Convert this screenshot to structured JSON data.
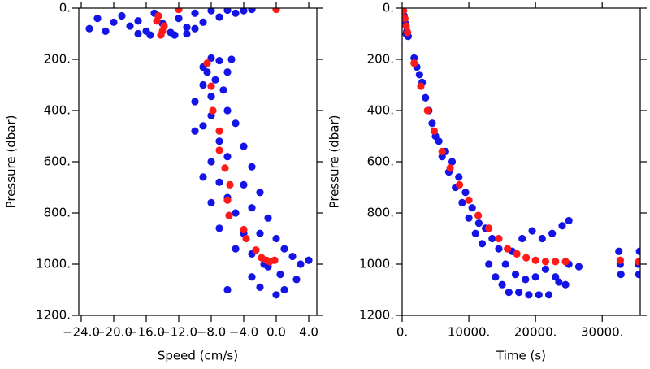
{
  "chart_data": [
    {
      "type": "scatter",
      "x_label": "Speed (cm/s)",
      "y_label": "Pressure (dbar)",
      "xlim": [
        -24.3,
        5
      ],
      "ylim": [
        0,
        1200
      ],
      "invert_y": true,
      "xticks": [
        {
          "value": -24,
          "label": "−24.0"
        },
        {
          "value": -20,
          "label": "−20.0"
        },
        {
          "value": -16,
          "label": "−16.0"
        },
        {
          "value": -12,
          "label": "−12.0"
        },
        {
          "value": -8,
          "label": "−8.0"
        },
        {
          "value": -4,
          "label": "−4.0"
        },
        {
          "value": 0,
          "label": "0.0"
        },
        {
          "value": 4,
          "label": "4.0"
        }
      ],
      "yticks": [
        {
          "value": 0,
          "label": "0."
        },
        {
          "value": 200,
          "label": "200."
        },
        {
          "value": 400,
          "label": "400."
        },
        {
          "value": 600,
          "label": "600."
        },
        {
          "value": 800,
          "label": "800."
        },
        {
          "value": 1000,
          "label": "1000."
        },
        {
          "value": 1200,
          "label": "1200."
        }
      ],
      "series": [
        {
          "color": "#1414e6",
          "x": [
            -23,
            -22,
            -20,
            -19,
            -18,
            -17,
            -16,
            -15,
            -14,
            -13,
            -12,
            -11,
            -10,
            -9,
            -8,
            -7,
            -6,
            -5,
            -4,
            -3,
            -15.5,
            -12.5,
            -17,
            -21,
            -11,
            -10,
            -8,
            -7,
            -9,
            -8.5,
            -6,
            -7.5,
            -9,
            -6.5,
            -5.5,
            -8,
            -10,
            -8,
            -6,
            -9,
            -5,
            -7,
            -10,
            -4,
            -8,
            -6,
            -3,
            -9,
            -7,
            -4,
            -2,
            -8,
            -6,
            -5,
            -3,
            -1,
            -7,
            -4,
            -2,
            0,
            -5,
            -3,
            1,
            2,
            -1,
            0.5,
            -3,
            3,
            4,
            -2,
            1,
            -6,
            0,
            -1.5,
            2.5
          ],
          "values": [
            80,
            40,
            55,
            30,
            70,
            50,
            90,
            20,
            60,
            95,
            40,
            75,
            20,
            55,
            10,
            35,
            8,
            20,
            10,
            5,
            105,
            105,
            100,
            90,
            100,
            80,
            195,
            205,
            230,
            250,
            250,
            280,
            300,
            320,
            200,
            345,
            365,
            420,
            400,
            460,
            450,
            520,
            480,
            540,
            600,
            580,
            620,
            660,
            680,
            690,
            720,
            760,
            740,
            800,
            780,
            820,
            860,
            880,
            880,
            900,
            940,
            960,
            940,
            970,
            1010,
            1040,
            1050,
            1000,
            985,
            1090,
            1100,
            1100,
            1120,
            1000,
            1060
          ]
        },
        {
          "color": "#ff1a1a",
          "x": [
            -12,
            0,
            -14.5,
            -14.7,
            -13.8,
            -14,
            -14.2,
            -8.5,
            -8,
            -7.8,
            -7,
            -7,
            -6.3,
            -5.7,
            -6,
            -5.8,
            -4,
            -3.7,
            -2.5,
            -1.8,
            -1.2,
            -0.8,
            -0.2
          ],
          "values": [
            5,
            5,
            30,
            50,
            70,
            90,
            105,
            215,
            305,
            400,
            480,
            555,
            625,
            690,
            750,
            810,
            865,
            900,
            945,
            975,
            985,
            990,
            985
          ]
        }
      ]
    },
    {
      "type": "scatter",
      "x_label": "Time (s)",
      "y_label": "Pressure (dbar)",
      "xlim": [
        0,
        35700
      ],
      "ylim": [
        0,
        1200
      ],
      "invert_y": true,
      "xticks": [
        {
          "value": 0,
          "label": "0."
        },
        {
          "value": 10000,
          "label": "10000."
        },
        {
          "value": 20000,
          "label": "20000."
        },
        {
          "value": 30000,
          "label": "30000."
        }
      ],
      "yticks": [
        {
          "value": 0,
          "label": "0."
        },
        {
          "value": 200,
          "label": "200."
        },
        {
          "value": 400,
          "label": "400."
        },
        {
          "value": 600,
          "label": "600."
        },
        {
          "value": 800,
          "label": "800."
        },
        {
          "value": 1000,
          "label": "1000."
        },
        {
          "value": 1200,
          "label": "1200."
        }
      ],
      "series": [
        {
          "color": "#1414e6",
          "x": [
            100,
            300,
            500,
            700,
            900,
            600,
            1800,
            2200,
            2600,
            3000,
            3500,
            4000,
            4500,
            5000,
            5500,
            6000,
            6500,
            7000,
            7500,
            8000,
            8500,
            9000,
            9500,
            10000,
            10500,
            11000,
            11500,
            12000,
            12500,
            13000,
            13500,
            14000,
            14500,
            15000,
            15500,
            16000,
            16500,
            17000,
            17500,
            18000,
            18500,
            19000,
            19500,
            20000,
            20500,
            21000,
            21500,
            22000,
            22500,
            23000,
            23500,
            24000,
            24500,
            25000,
            25000,
            26500,
            32500,
            32800,
            32700,
            35600,
            35500,
            35400
          ],
          "values": [
            5,
            30,
            60,
            90,
            110,
            100,
            195,
            230,
            260,
            290,
            350,
            400,
            450,
            500,
            520,
            580,
            560,
            640,
            600,
            700,
            660,
            760,
            720,
            820,
            780,
            880,
            840,
            920,
            860,
            1000,
            900,
            1050,
            940,
            1080,
            1000,
            1110,
            950,
            1040,
            1110,
            900,
            1060,
            1120,
            870,
            1050,
            1120,
            900,
            1020,
            1120,
            880,
            1050,
            1070,
            850,
            1080,
            1000,
            830,
            1010,
            950,
            1040,
            1000,
            950,
            1040,
            1000
          ]
        },
        {
          "color": "#ff1a1a",
          "x": [
            200,
            400,
            600,
            800,
            1800,
            2800,
            3800,
            4800,
            6000,
            7200,
            8600,
            10000,
            11400,
            13000,
            14500,
            15800,
            17200,
            18600,
            20000,
            21500,
            23000,
            24500,
            32700,
            35500
          ],
          "values": [
            10,
            40,
            70,
            95,
            215,
            305,
            400,
            480,
            560,
            625,
            690,
            750,
            810,
            860,
            900,
            940,
            960,
            975,
            985,
            990,
            990,
            990,
            985,
            990
          ]
        }
      ]
    }
  ]
}
